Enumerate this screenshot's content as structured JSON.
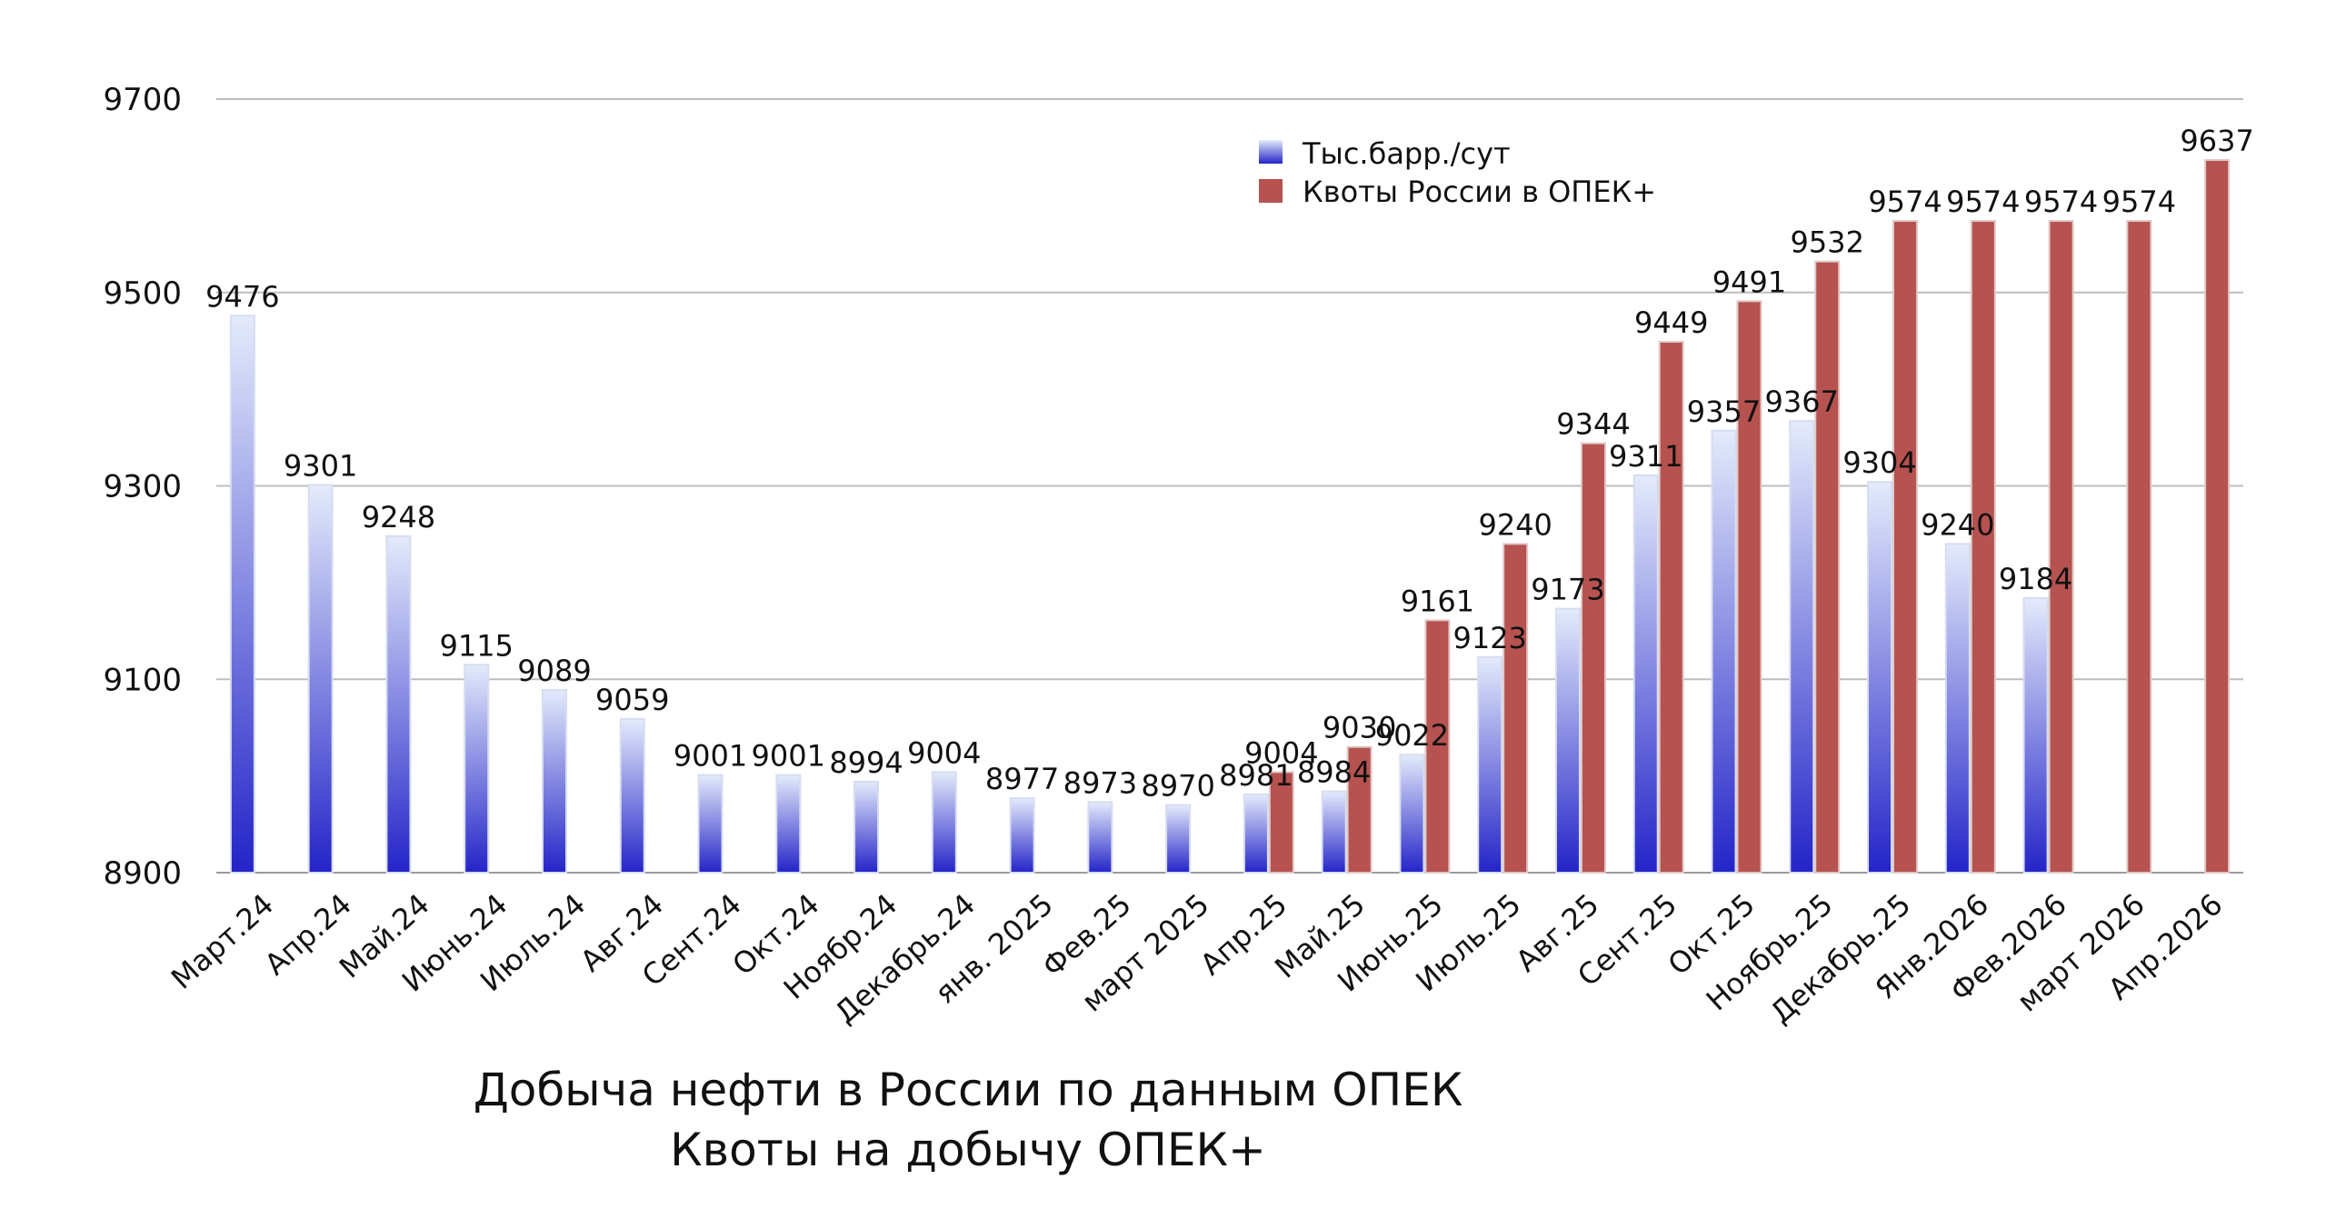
{
  "chart_data": {
    "type": "bar",
    "title": "Добыча нефти в России по данным ОПЕК",
    "subtitle": "Квоты на добычу ОПЕК+",
    "categories": [
      "Март.24",
      "Апр.24",
      "Май.24",
      "Июнь.24",
      "Июль.24",
      "Авг.24",
      "Сент.24",
      "Окт.24",
      "Ноябр.24",
      "Декабрь.24",
      "янв. 2025",
      "Фев.25",
      "март 2025",
      "Апр.25",
      "Май.25",
      "Июнь.25",
      "Июль.25",
      "Авг.25",
      "Сент.25",
      "Окт.25",
      "Ноябрь.25",
      "Декабрь.25",
      "Янв.2026",
      "Фев.2026",
      "март 2026",
      "Апр.2026"
    ],
    "series": [
      {
        "name": "Тыс.барр./сут",
        "values": [
          9476,
          9301,
          9248,
          9115,
          9089,
          9059,
          9001,
          9001,
          8994,
          9004,
          8977,
          8973,
          8970,
          8981,
          8984,
          9022,
          9123,
          9173,
          9311,
          9357,
          9367,
          9304,
          9240,
          9184,
          null,
          null
        ],
        "labels": [
          "9476",
          "9301",
          "9248",
          "9115",
          "9089",
          "9059",
          "9001",
          "9001",
          "8994",
          "9004",
          "8977",
          "8973",
          "8970",
          "8981",
          "8984",
          "9022",
          "9123",
          "9173",
          "9311",
          "9357",
          "9367",
          "9304",
          "9240",
          "9184",
          "",
          ""
        ]
      },
      {
        "name": "Квоты России в ОПЕК+",
        "values": [
          null,
          null,
          null,
          null,
          null,
          null,
          null,
          null,
          null,
          null,
          null,
          null,
          null,
          9004,
          9030,
          9161,
          9240,
          9344,
          9449,
          9491,
          9532,
          9574,
          9574,
          9574,
          9574,
          9637
        ],
        "labels": [
          "",
          "",
          "",
          "",
          "",
          "",
          "",
          "",
          "",
          "",
          "",
          "",
          "",
          "9004",
          "9030",
          "9161",
          "9240",
          "9344",
          "9449",
          "9491",
          "9532",
          "9574",
          "9574",
          "9574",
          "9574",
          "9637"
        ]
      }
    ],
    "yticks": [
      "8900",
      "9100",
      "9300",
      "9500",
      "9700"
    ],
    "ylim": [
      8900,
      9700
    ],
    "grid": true,
    "legend_position": "top-right",
    "colors": {
      "production_top": "#e4ebfb",
      "production_bottom": "#2424c8",
      "quota": "#b6524f",
      "grid": "#bdbdbd",
      "axis": "#9a9a9a"
    }
  }
}
